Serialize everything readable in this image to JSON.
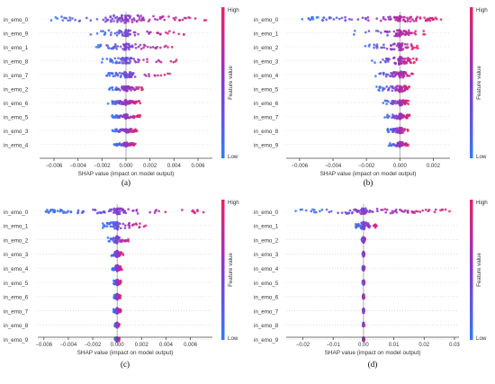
{
  "chart_data": [
    {
      "type": "scatter",
      "subtype": "shap-beeswarm",
      "panel_label": "(a)",
      "xlabel": "SHAP value (impact on model output)",
      "ticks": [
        -0.006,
        -0.004,
        -0.002,
        0.0,
        0.002,
        0.004,
        0.006
      ],
      "tick_labels": [
        "−0.006",
        "−0.004",
        "−0.002",
        "0.000",
        "0.002",
        "0.004",
        "0.006"
      ],
      "xlim": [
        -0.0072,
        0.0072
      ],
      "colorbar": {
        "title": "Feature value",
        "high": "High",
        "low": "Low"
      },
      "features": [
        {
          "name": "in_emo_0",
          "min": -0.0065,
          "max": 0.0068,
          "width": 1.0
        },
        {
          "name": "in_emo_9",
          "min": -0.003,
          "max": 0.0052,
          "width": 0.85
        },
        {
          "name": "in_emo_1",
          "min": -0.0028,
          "max": 0.0042,
          "width": 0.8
        },
        {
          "name": "in_emo_8",
          "min": -0.0022,
          "max": 0.0045,
          "width": 0.75
        },
        {
          "name": "in_emo_7",
          "min": -0.002,
          "max": 0.0038,
          "width": 0.7
        },
        {
          "name": "in_emo_2",
          "min": -0.0015,
          "max": 0.0015,
          "width": 0.65
        },
        {
          "name": "in_emo_6",
          "min": -0.0015,
          "max": 0.0012,
          "width": 0.6
        },
        {
          "name": "in_emo_5",
          "min": -0.0012,
          "max": 0.0012,
          "width": 0.55
        },
        {
          "name": "in_emo_3",
          "min": -0.0012,
          "max": 0.001,
          "width": 0.55
        },
        {
          "name": "in_emo_4",
          "min": -0.001,
          "max": 0.0008,
          "width": 0.5
        }
      ]
    },
    {
      "type": "scatter",
      "subtype": "shap-beeswarm",
      "panel_label": "(b)",
      "xlabel": "SHAP value (impact on model output)",
      "ticks": [
        -0.006,
        -0.004,
        -0.002,
        0.0,
        0.002
      ],
      "tick_labels": [
        "−0.006",
        "−0.004",
        "−0.002",
        "0.000",
        "0.002"
      ],
      "xlim": [
        -0.0068,
        0.003
      ],
      "colorbar": {
        "title": "Feature value",
        "high": "High",
        "low": "Low"
      },
      "features": [
        {
          "name": "in_emo_0",
          "min": -0.006,
          "max": 0.0025,
          "width": 0.7
        },
        {
          "name": "in_emo_1",
          "min": -0.0028,
          "max": 0.0015,
          "width": 0.9
        },
        {
          "name": "in_emo_2",
          "min": -0.0022,
          "max": 0.0012,
          "width": 0.9
        },
        {
          "name": "in_emo_3",
          "min": -0.0018,
          "max": 0.001,
          "width": 0.95
        },
        {
          "name": "in_emo_4",
          "min": -0.0015,
          "max": 0.0008,
          "width": 0.85
        },
        {
          "name": "in_emo_5",
          "min": -0.0014,
          "max": 0.0007,
          "width": 0.85
        },
        {
          "name": "in_emo_6",
          "min": -0.001,
          "max": 0.0006,
          "width": 0.75
        },
        {
          "name": "in_emo_7",
          "min": -0.0009,
          "max": 0.0006,
          "width": 0.7
        },
        {
          "name": "in_emo_8",
          "min": -0.0008,
          "max": 0.0005,
          "width": 0.7
        },
        {
          "name": "in_emo_9",
          "min": -0.0007,
          "max": 0.0005,
          "width": 0.65
        }
      ]
    },
    {
      "type": "scatter",
      "subtype": "shap-beeswarm",
      "panel_label": "(c)",
      "xlabel": "SHAP value (impact on model output)",
      "ticks": [
        -0.006,
        -0.004,
        -0.002,
        0.0,
        0.002,
        0.004,
        0.006
      ],
      "tick_labels": [
        "−0.006",
        "−0.004",
        "−0.002",
        "0.000",
        "0.002",
        "0.004",
        "0.006"
      ],
      "xlim": [
        -0.0065,
        0.0078
      ],
      "colorbar": {
        "title": "Feature value",
        "high": "High",
        "low": "Low"
      },
      "features": [
        {
          "name": "in_emo_0",
          "min": -0.006,
          "max": 0.0072,
          "width": 0.75
        },
        {
          "name": "in_emo_1",
          "min": -0.0012,
          "max": 0.0025,
          "width": 1.0
        },
        {
          "name": "in_emo_2",
          "min": -0.0008,
          "max": 0.001,
          "width": 0.9
        },
        {
          "name": "in_emo_3",
          "min": -0.0005,
          "max": 0.0005,
          "width": 0.8
        },
        {
          "name": "in_emo_4",
          "min": -0.0004,
          "max": 0.0004,
          "width": 0.8
        },
        {
          "name": "in_emo_5",
          "min": -0.0003,
          "max": 0.0003,
          "width": 0.75
        },
        {
          "name": "in_emo_6",
          "min": -0.0003,
          "max": 0.0003,
          "width": 0.7
        },
        {
          "name": "in_emo_7",
          "min": -0.0003,
          "max": 0.0003,
          "width": 0.7
        },
        {
          "name": "in_emo_8",
          "min": -0.0002,
          "max": 0.0002,
          "width": 0.65
        },
        {
          "name": "in_emo_9",
          "min": -0.0002,
          "max": 0.0002,
          "width": 0.6
        }
      ]
    },
    {
      "type": "scatter",
      "subtype": "shap-beeswarm",
      "panel_label": "(d)",
      "xlabel": "SHAP value (impact on model output)",
      "ticks": [
        -0.02,
        -0.01,
        0.0,
        0.01,
        0.02,
        0.03
      ],
      "tick_labels": [
        "−0.02",
        "−0.01",
        "0.00",
        "0.01",
        "0.02",
        "0.03"
      ],
      "xlim": [
        -0.0255,
        0.0315
      ],
      "colorbar": {
        "title": "Feature value",
        "high": "High",
        "low": "Low"
      },
      "features": [
        {
          "name": "in_emo_0",
          "min": -0.023,
          "max": 0.029,
          "width": 0.75
        },
        {
          "name": "in_emo_1",
          "min": -0.003,
          "max": 0.005,
          "width": 0.9
        },
        {
          "name": "in_emo_2",
          "min": -0.0006,
          "max": 0.0006,
          "width": 0.7
        },
        {
          "name": "in_emo_3",
          "min": -0.0003,
          "max": 0.0003,
          "width": 0.6
        },
        {
          "name": "in_emo_4",
          "min": -0.0003,
          "max": 0.0003,
          "width": 0.6
        },
        {
          "name": "in_emo_5",
          "min": -0.0003,
          "max": 0.0003,
          "width": 0.6
        },
        {
          "name": "in_emo_6",
          "min": -0.0002,
          "max": 0.0002,
          "width": 0.55
        },
        {
          "name": "in_emo_7",
          "min": -0.0002,
          "max": 0.0002,
          "width": 0.55
        },
        {
          "name": "in_emo_8",
          "min": -0.0002,
          "max": 0.0002,
          "width": 0.55
        },
        {
          "name": "in_emo_9",
          "min": -0.0002,
          "max": 0.0002,
          "width": 0.5
        }
      ]
    }
  ],
  "colors": {
    "low": "#2f7cf6",
    "high": "#e8206b",
    "mid": "#8a37c8"
  }
}
